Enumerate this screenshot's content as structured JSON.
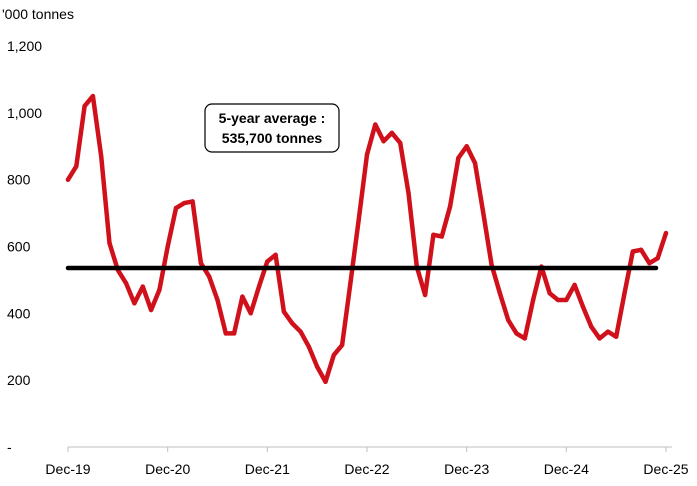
{
  "chart_data": {
    "type": "line",
    "title": "",
    "xlabel": "",
    "ylabel": "'000 tonnes",
    "ylim": [
      0,
      1200
    ],
    "y_ticks": [
      {
        "value": 0,
        "label": "-"
      },
      {
        "value": 200,
        "label": "200"
      },
      {
        "value": 400,
        "label": "400"
      },
      {
        "value": 600,
        "label": "600"
      },
      {
        "value": 800,
        "label": "800"
      },
      {
        "value": 1000,
        "label": "1,000"
      },
      {
        "value": 1200,
        "label": "1,200"
      }
    ],
    "x_ticks": [
      {
        "index": 0,
        "label": "Dec-19"
      },
      {
        "index": 12,
        "label": "Dec-20"
      },
      {
        "index": 24,
        "label": "Dec-21"
      },
      {
        "index": 36,
        "label": "Dec-22"
      },
      {
        "index": 48,
        "label": "Dec-23"
      },
      {
        "index": 60,
        "label": "Dec-24"
      },
      {
        "index": 72,
        "label": "Dec-25"
      }
    ],
    "grid": false,
    "legend": "none",
    "series": [
      {
        "color": "#d0111b",
        "values": [
          800,
          840,
          1020,
          1050,
          870,
          610,
          530,
          490,
          430,
          480,
          410,
          470,
          600,
          715,
          730,
          735,
          550,
          510,
          440,
          340,
          340,
          450,
          400,
          480,
          555,
          575,
          405,
          370,
          345,
          300,
          240,
          195,
          275,
          305,
          490,
          680,
          875,
          965,
          915,
          940,
          910,
          760,
          540,
          455,
          635,
          630,
          720,
          865,
          900,
          850,
          700,
          545,
          460,
          380,
          340,
          325,
          440,
          540,
          460,
          440,
          440,
          485,
          420,
          360,
          325,
          345,
          330,
          460,
          585,
          590,
          550,
          565,
          640
        ]
      }
    ],
    "reference_line": {
      "value": 535.7,
      "color": "#000000"
    },
    "annotation": {
      "line1": "5-year average :",
      "line2": "535,700 tonnes"
    }
  }
}
